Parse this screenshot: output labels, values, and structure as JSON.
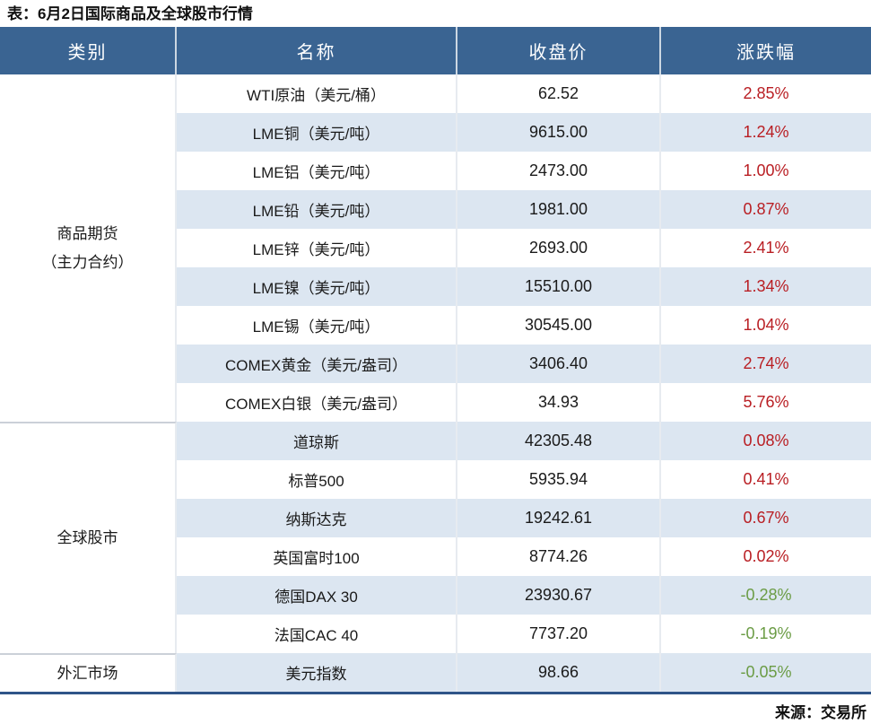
{
  "title": "表：6月2日国际商品及全球股市行情",
  "footer": {
    "source_label": "来源：交易所"
  },
  "colors": {
    "header_bg": "#3A6492",
    "header_text": "#FFFFFF",
    "row_stripe": "#DCE6F1",
    "up_red": "#B91E23",
    "down_green": "#6B9C45",
    "bottom_border_blue": "#2F5488"
  },
  "chart_data": {
    "type": "table",
    "title": "表：6月2日国际商品及全球股市行情",
    "columns": [
      "类别",
      "名称",
      "收盘价",
      "涨跌幅"
    ],
    "sections": [
      {
        "category": "商品期货（主力合约）",
        "category_lines": [
          "商品期货",
          "（主力合约）"
        ],
        "rows": [
          {
            "name": "WTI原油（美元/桶）",
            "close": "62.52",
            "change": "2.85%"
          },
          {
            "name": "LME铜（美元/吨）",
            "close": "9615.00",
            "change": "1.24%"
          },
          {
            "name": "LME铝（美元/吨）",
            "close": "2473.00",
            "change": "1.00%"
          },
          {
            "name": "LME铅（美元/吨）",
            "close": "1981.00",
            "change": "0.87%"
          },
          {
            "name": "LME锌（美元/吨）",
            "close": "2693.00",
            "change": "2.41%"
          },
          {
            "name": "LME镍（美元/吨）",
            "close": "15510.00",
            "change": "1.34%"
          },
          {
            "name": "LME锡（美元/吨）",
            "close": "30545.00",
            "change": "1.04%"
          },
          {
            "name": "COMEX黄金（美元/盎司）",
            "close": "3406.40",
            "change": "2.74%"
          },
          {
            "name": "COMEX白银（美元/盎司）",
            "close": "34.93",
            "change": "5.76%"
          }
        ]
      },
      {
        "category": "全球股市",
        "category_lines": [
          "全球股市"
        ],
        "rows": [
          {
            "name": "道琼斯",
            "close": "42305.48",
            "change": "0.08%"
          },
          {
            "name": "标普500",
            "close": "5935.94",
            "change": "0.41%"
          },
          {
            "name": "纳斯达克",
            "close": "19242.61",
            "change": "0.67%"
          },
          {
            "name": "英国富时100",
            "close": "8774.26",
            "change": "0.02%"
          },
          {
            "name": "德国DAX 30",
            "close": "23930.67",
            "change": "-0.28%"
          },
          {
            "name": "法国CAC 40",
            "close": "7737.20",
            "change": "-0.19%"
          }
        ]
      },
      {
        "category": "外汇市场",
        "category_lines": [
          "外汇市场"
        ],
        "rows": [
          {
            "name": "美元指数",
            "close": "98.66",
            "change": "-0.05%"
          }
        ]
      }
    ]
  }
}
